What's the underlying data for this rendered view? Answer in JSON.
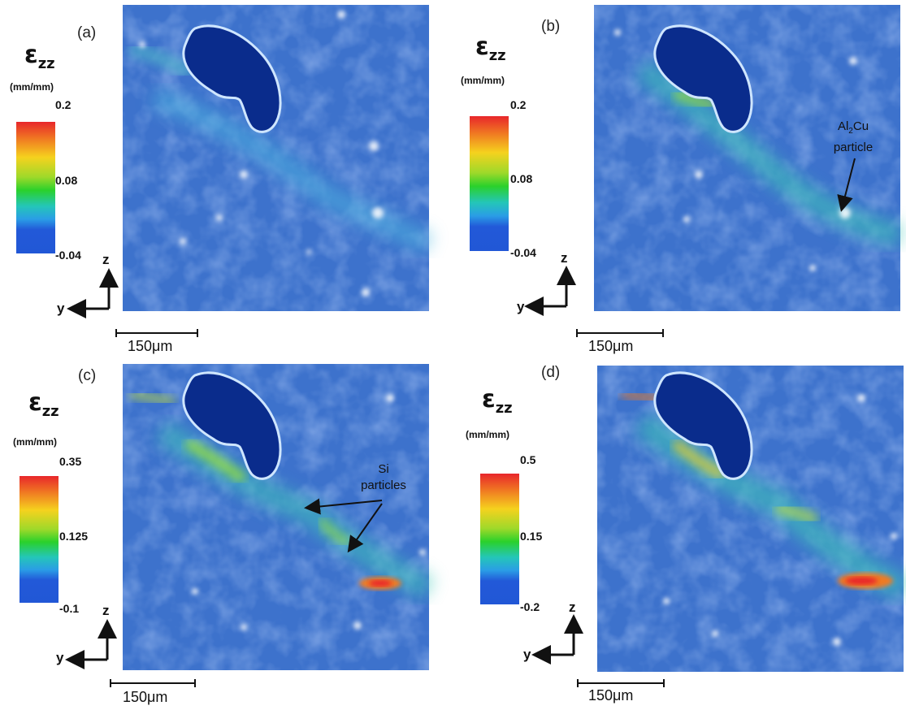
{
  "panels": [
    {
      "id": "a",
      "label": "(a)",
      "cb_max": "0.2",
      "cb_mid": "0.08",
      "cb_min": "-0.04"
    },
    {
      "id": "b",
      "label": "(b)",
      "cb_max": "0.2",
      "cb_mid": "0.08",
      "cb_min": "-0.04"
    },
    {
      "id": "c",
      "label": "(c)",
      "cb_max": "0.35",
      "cb_mid": "0.125",
      "cb_min": "-0.1"
    },
    {
      "id": "d",
      "label": "(d)",
      "cb_max": "0.5",
      "cb_mid": "0.15",
      "cb_min": "-0.2"
    }
  ],
  "colorbar_title": "ε",
  "colorbar_subscript": "zz",
  "colorbar_units": "(mm/mm)",
  "axis_z": "z",
  "axis_y": "y",
  "scale_bar": "150μm",
  "annotations": {
    "al2cu_line1_a": "Al",
    "al2cu_line1_sub": "2",
    "al2cu_line1_b": "Cu",
    "al2cu_line2": "particle",
    "si_line1": "Si",
    "si_line2": "particles"
  },
  "colors": {
    "background_strain": "#3d72cc",
    "void": "#0a2c8c",
    "hot": "#e8262b"
  }
}
